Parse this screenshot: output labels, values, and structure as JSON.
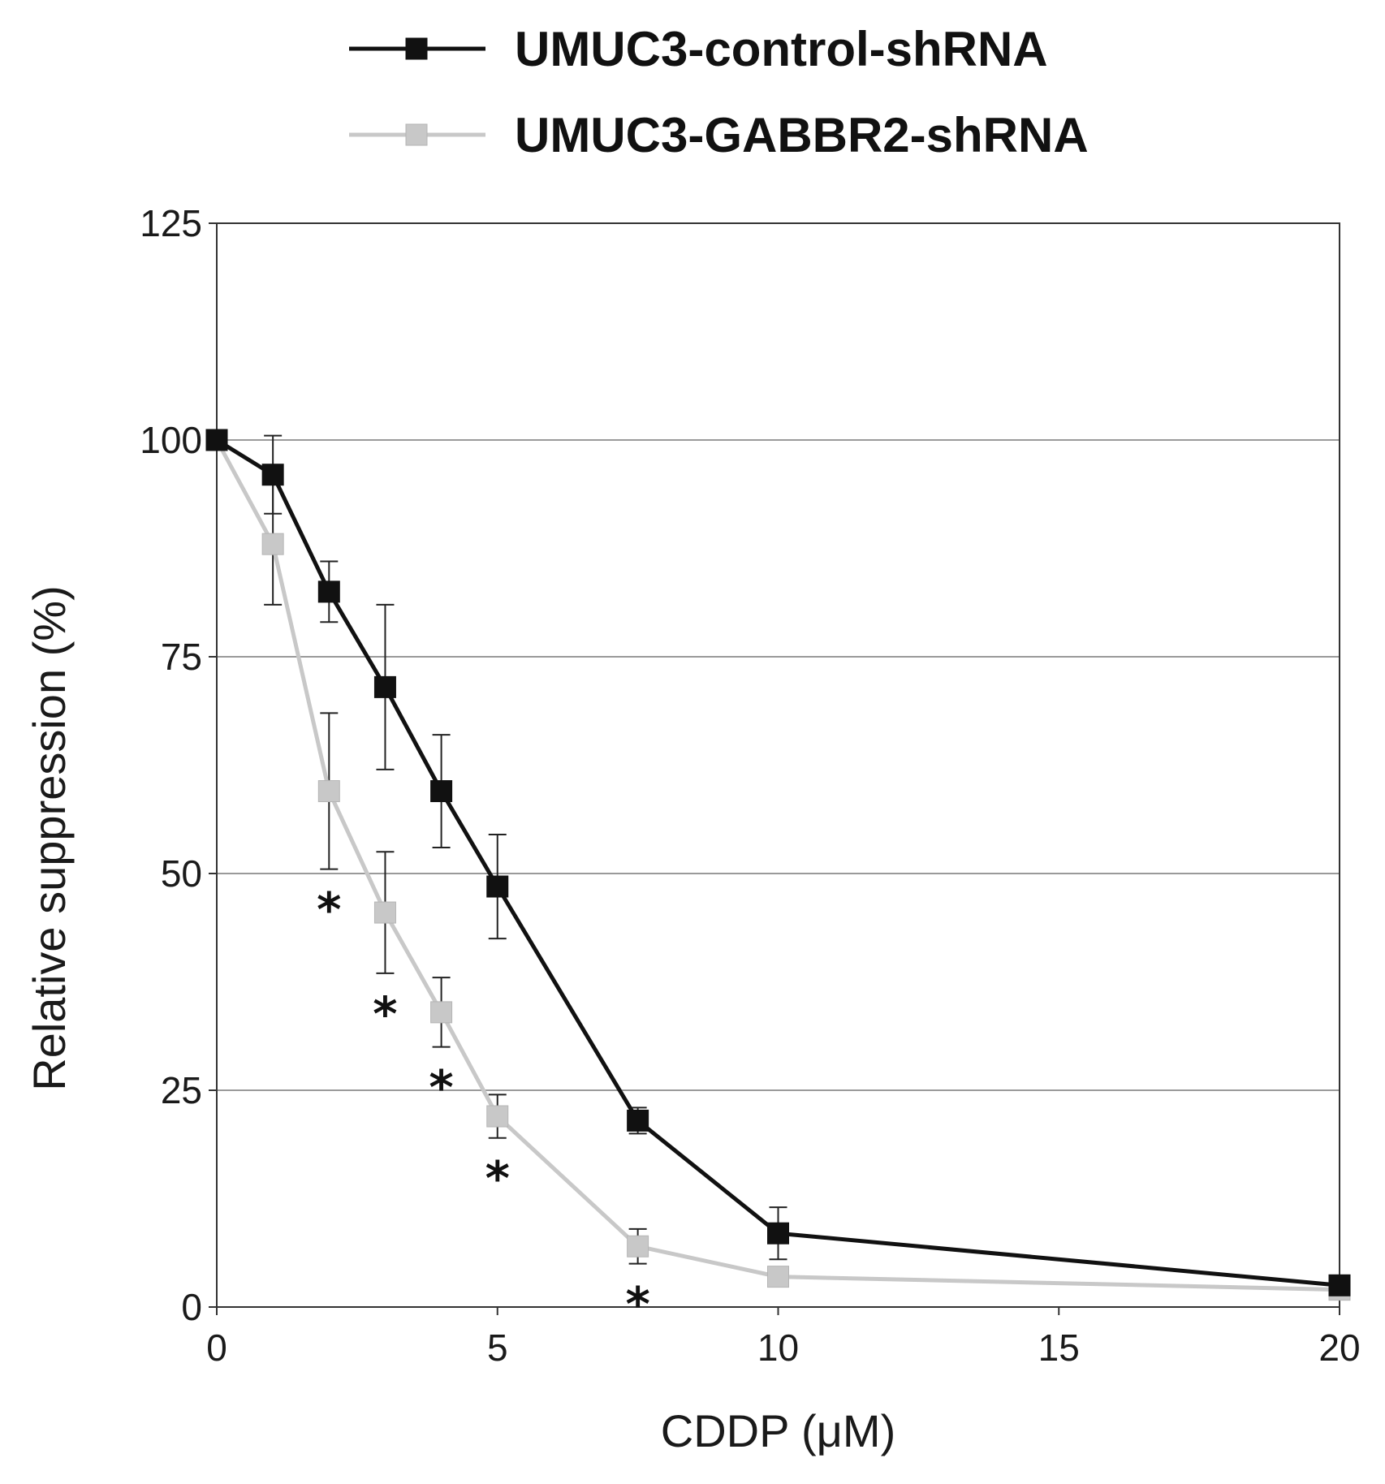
{
  "chart_data": {
    "type": "line",
    "xlabel": "CDDP (μM)",
    "ylabel": "Relative suppression (%)",
    "xlim": [
      0,
      20
    ],
    "ylim": [
      0,
      125
    ],
    "x_ticks": [
      0,
      5,
      10,
      15,
      20
    ],
    "y_ticks": [
      0,
      25,
      50,
      75,
      100,
      125
    ],
    "grid": "horizontal",
    "legend_position": "top",
    "x": [
      0,
      1,
      2,
      3,
      4,
      5,
      7.5,
      10,
      20
    ],
    "series": [
      {
        "name": "UMUC3-control-shRNA",
        "color": "#111111",
        "marker": "filled-square",
        "values": [
          100,
          96,
          82.5,
          71.5,
          59.5,
          48.5,
          21.5,
          8.5,
          2.5
        ],
        "errors": [
          1,
          4.5,
          3.5,
          9.5,
          6.5,
          6,
          1.5,
          3,
          1
        ]
      },
      {
        "name": "UMUC3-GABBR2-shRNA",
        "color": "#c8c8c8",
        "marker": "filled-square",
        "values": [
          100,
          88,
          59.5,
          45.5,
          34,
          22,
          7,
          3.5,
          2
        ],
        "errors": [
          0.5,
          7,
          9,
          7,
          4,
          2.5,
          2,
          0.5,
          0.5
        ]
      }
    ],
    "annotations": [
      {
        "text": "*",
        "x": 2,
        "series": "UMUC3-GABBR2-shRNA"
      },
      {
        "text": "*",
        "x": 3,
        "series": "UMUC3-GABBR2-shRNA"
      },
      {
        "text": "*",
        "x": 4,
        "series": "UMUC3-GABBR2-shRNA"
      },
      {
        "text": "*",
        "x": 5,
        "series": "UMUC3-GABBR2-shRNA"
      },
      {
        "text": "*",
        "x": 7.5,
        "series": "UMUC3-GABBR2-shRNA"
      }
    ]
  }
}
